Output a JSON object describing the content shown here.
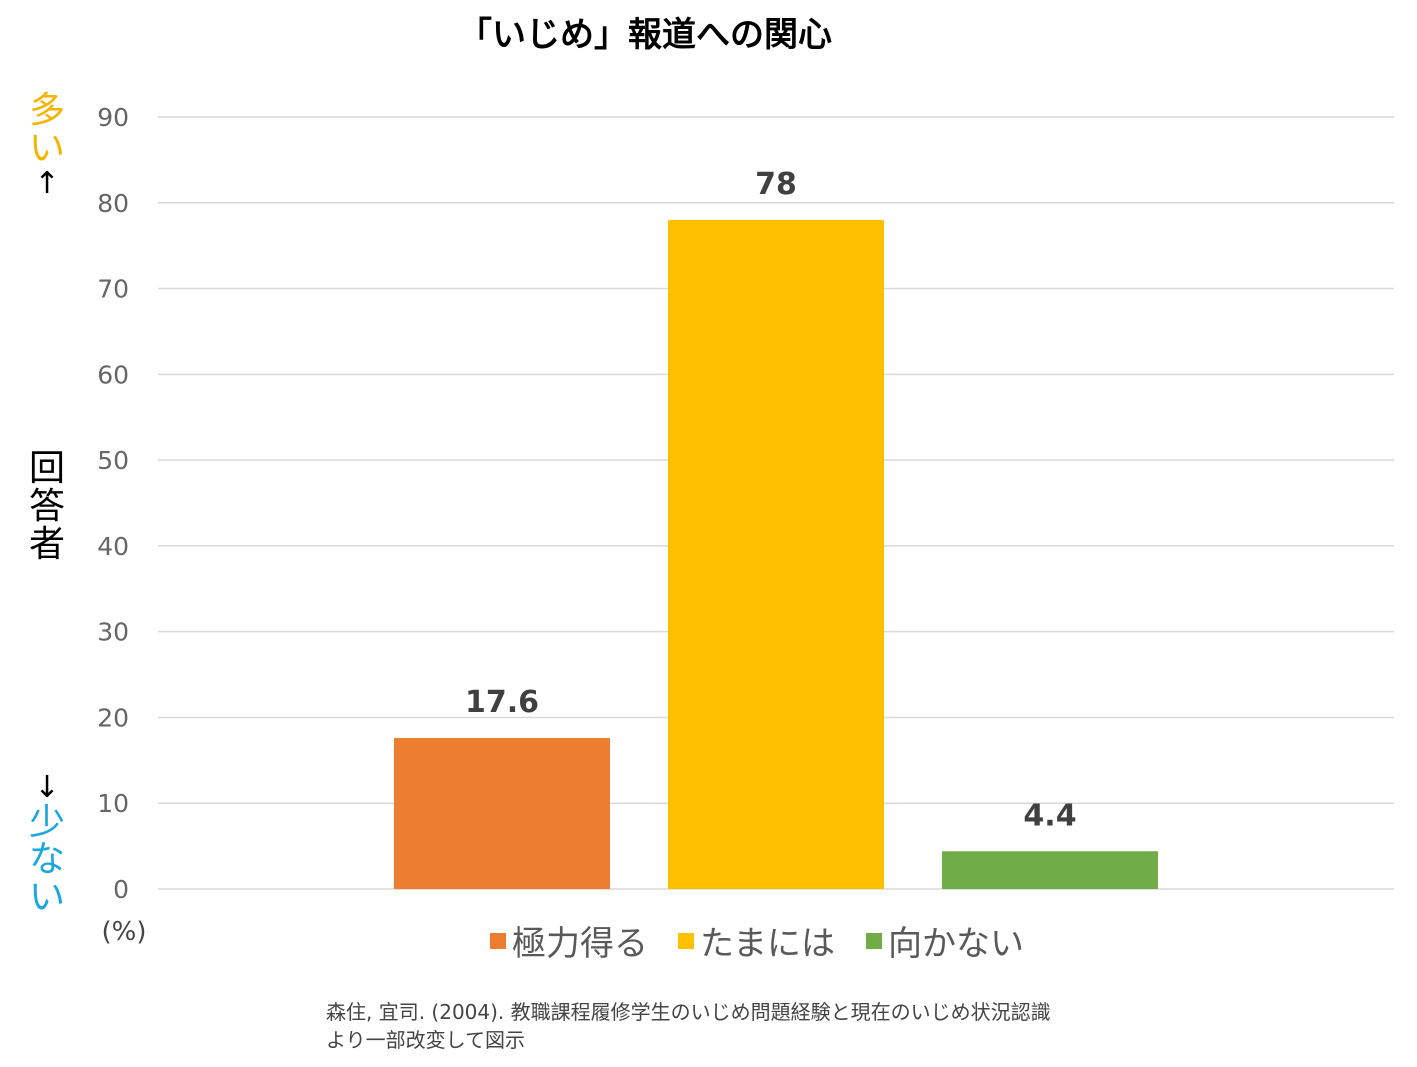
{
  "colors": {
    "many": "#f5b400",
    "few": "#1aa7e0",
    "axis_text": "#666666",
    "grid": "#d9d9d9",
    "data_label": "#404040"
  },
  "side_labels": {
    "many_text": "多い",
    "many_arrow": "↑",
    "respondent": "回答者",
    "few_arrow": "↓",
    "few_text": "少ない"
  },
  "source": {
    "line1": "森住, 宜司. (2004). 教職課程履修学生のいじめ問題経験と現在のいじめ状況認識",
    "line2": "より一部改変して図示"
  },
  "chart_data": {
    "type": "bar",
    "title": "「いじめ」報道への関心",
    "unit_label": "(%)",
    "categories": [
      "極力得る",
      "たまには",
      "向かない"
    ],
    "values": [
      17.6,
      78,
      4.4
    ],
    "value_labels": [
      "17.6",
      "78",
      "4.4"
    ],
    "colors": [
      "#ed7d31",
      "#ffc000",
      "#70ad47"
    ],
    "ylim": [
      0,
      90
    ],
    "yticks": [
      0,
      10,
      20,
      30,
      40,
      50,
      60,
      70,
      80,
      90
    ],
    "grid": true,
    "legend_position": "bottom"
  }
}
